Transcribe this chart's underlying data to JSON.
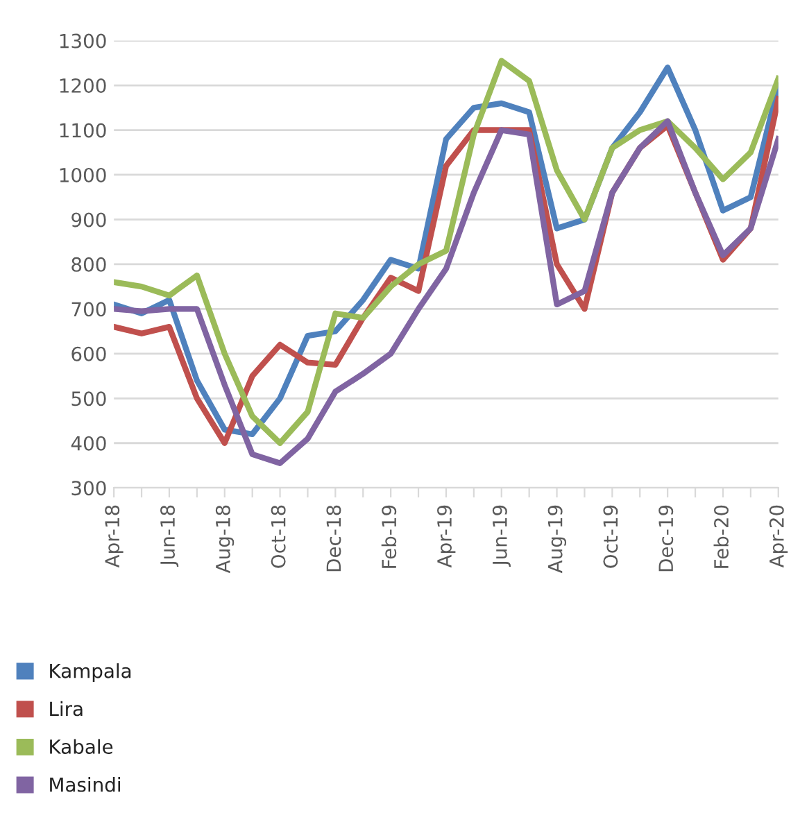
{
  "chart_data": {
    "type": "line",
    "categories": [
      "Apr-18",
      null,
      "Jun-18",
      null,
      "Aug-18",
      null,
      "Oct-18",
      null,
      "Dec-18",
      null,
      "Feb-19",
      null,
      "Apr-19",
      null,
      "Jun-19",
      null,
      "Aug-19",
      null,
      "Oct-19",
      null,
      "Dec-19",
      null,
      "Feb-20",
      null,
      "Apr-20"
    ],
    "series": [
      {
        "name": "Kampala",
        "color": "#4f81bd",
        "values": [
          710,
          690,
          720,
          540,
          430,
          420,
          500,
          640,
          650,
          720,
          810,
          790,
          1080,
          1150,
          1160,
          1140,
          880,
          900,
          1060,
          1140,
          1240,
          1100,
          920,
          950,
          1200
        ]
      },
      {
        "name": "Lira",
        "color": "#c0504d",
        "values": [
          660,
          645,
          660,
          500,
          400,
          550,
          620,
          580,
          575,
          680,
          770,
          740,
          1020,
          1100,
          1100,
          1100,
          800,
          700,
          960,
          1060,
          1110,
          960,
          810,
          880,
          1170
        ]
      },
      {
        "name": "Kabale",
        "color": "#9bbb59",
        "values": [
          760,
          750,
          730,
          775,
          600,
          460,
          400,
          470,
          690,
          680,
          750,
          800,
          830,
          1090,
          1255,
          1210,
          1010,
          900,
          1060,
          1100,
          1120,
          1060,
          990,
          1050,
          1215
        ]
      },
      {
        "name": "Masindi",
        "color": "#8064a2",
        "values": [
          700,
          695,
          700,
          700,
          530,
          375,
          355,
          410,
          515,
          555,
          600,
          700,
          790,
          960,
          1100,
          1090,
          710,
          740,
          960,
          1060,
          1120,
          960,
          820,
          880,
          1080
        ]
      }
    ],
    "ylim": [
      300,
      1300
    ],
    "yticks": [
      300,
      400,
      500,
      600,
      700,
      800,
      900,
      1000,
      1100,
      1200,
      1300
    ],
    "grid": "y",
    "legend": "bottom left",
    "marker": "none",
    "line_style": "solid"
  }
}
